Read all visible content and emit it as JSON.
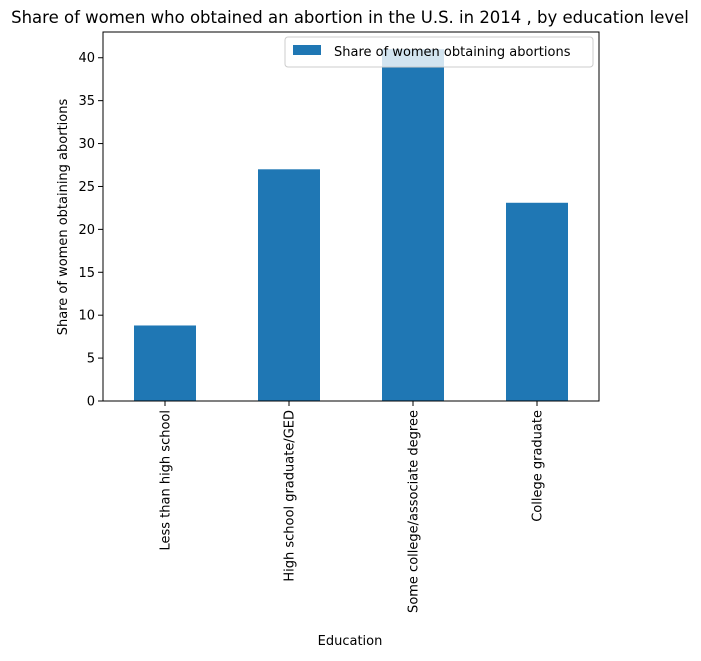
{
  "chart_data": {
    "type": "bar",
    "title": "Share of women who obtained an abortion in the U.S. in 2014 , by education level",
    "xlabel": "Education",
    "ylabel": "Share of women obtaining abortions",
    "categories": [
      "Less than high school",
      "High school graduate/GED",
      "Some college/associate degree",
      "College graduate"
    ],
    "series": [
      {
        "name": "Share of women obtaining abortions",
        "values": [
          8.8,
          27,
          41,
          23.1
        ],
        "color": "#1f77b4"
      }
    ],
    "ylim": [
      0,
      43
    ],
    "yticks": [
      0,
      5,
      10,
      15,
      20,
      25,
      30,
      35,
      40
    ],
    "grid": false,
    "legend_position": "top-right"
  }
}
